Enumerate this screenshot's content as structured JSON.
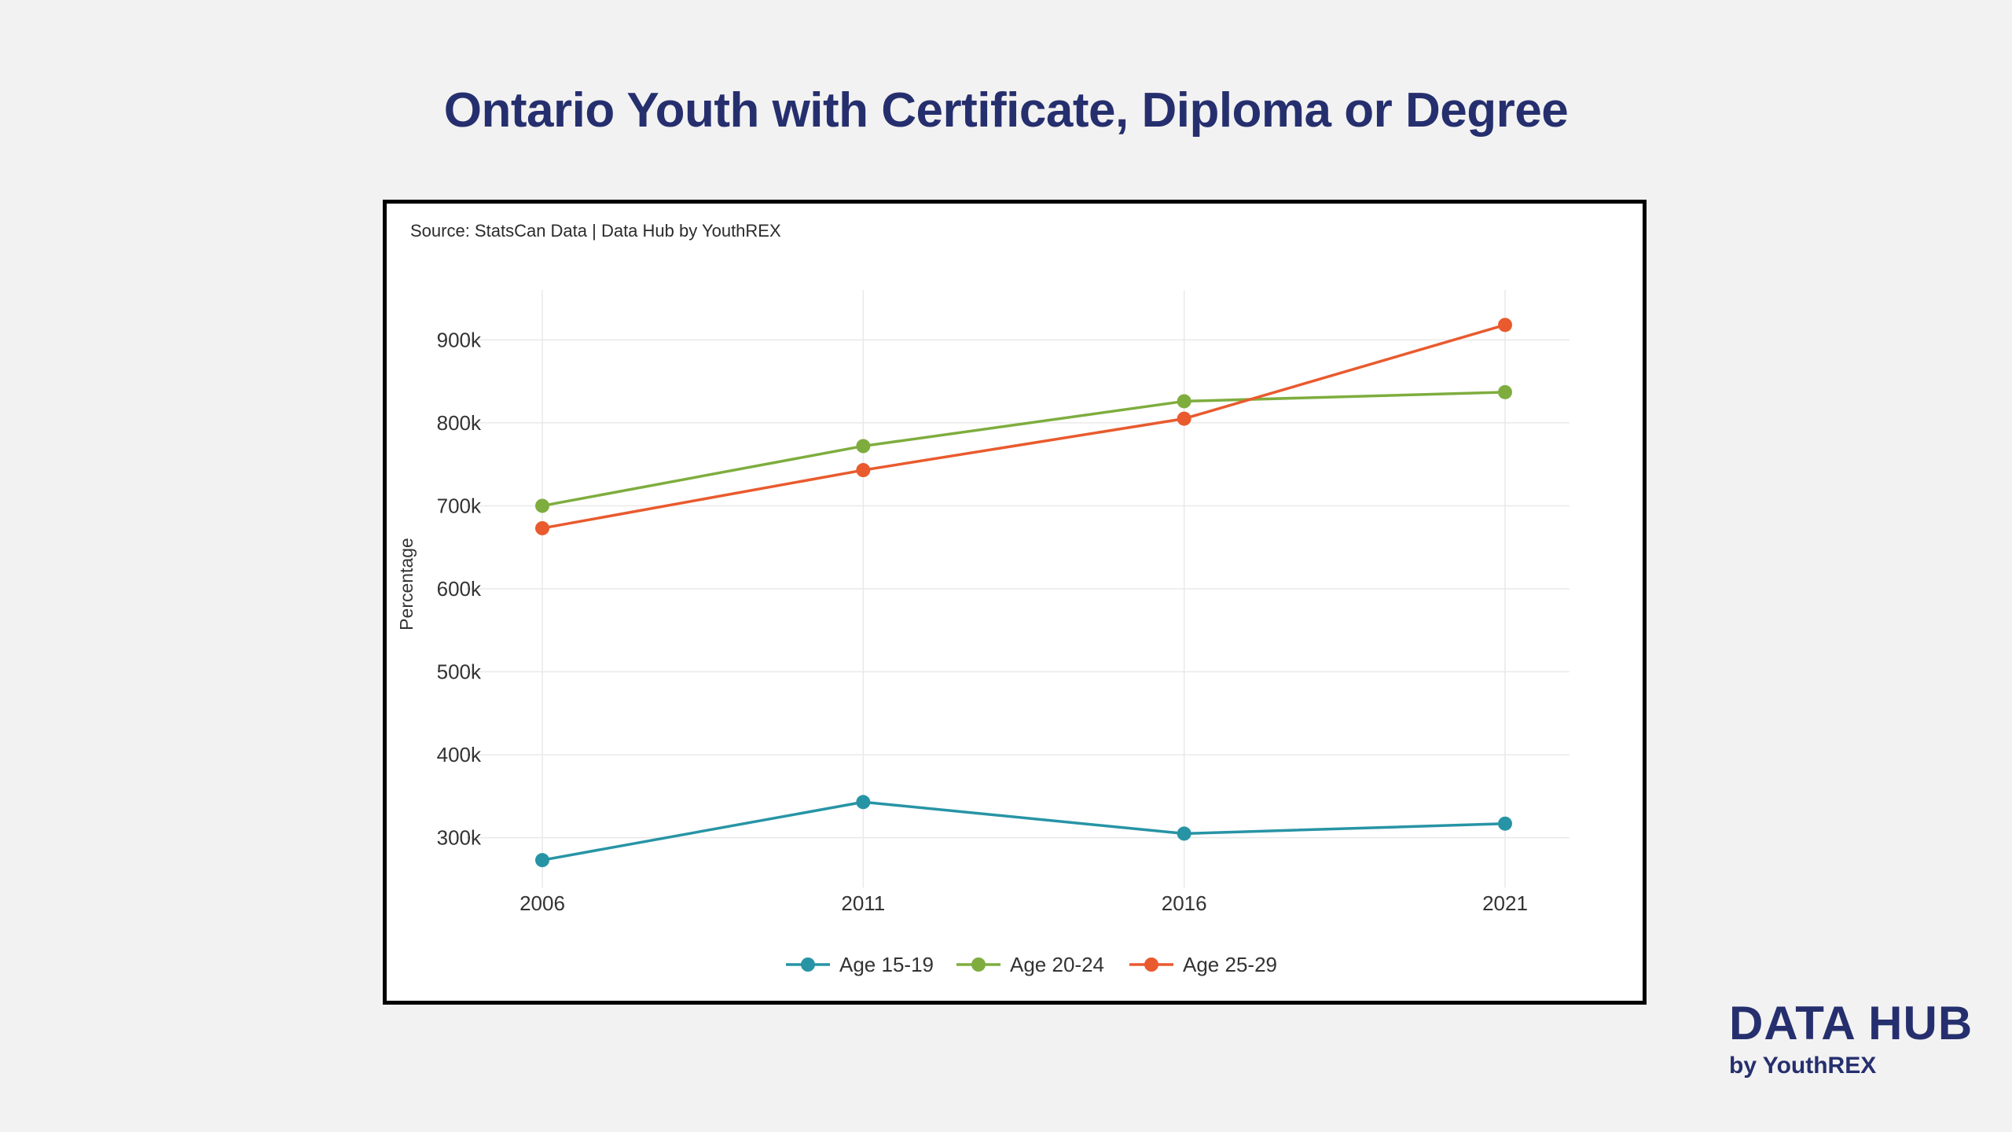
{
  "page": {
    "title": "Ontario Youth with Certificate, Diploma or Degree",
    "source": "Source: StatsCan Data | Data Hub by YouthREX",
    "brand_name": "DATA HUB",
    "brand_sub": "by YouthREX"
  },
  "chart_data": {
    "type": "line",
    "title": "",
    "xlabel": "",
    "ylabel": "Percentage",
    "x": [
      "2006",
      "2011",
      "2016",
      "2021"
    ],
    "ylim": [
      240000,
      960000
    ],
    "yticks": [
      300000,
      400000,
      500000,
      600000,
      700000,
      800000,
      900000
    ],
    "ytick_labels": [
      "300k",
      "400k",
      "500k",
      "600k",
      "700k",
      "800k",
      "900k"
    ],
    "grid": true,
    "legend_position": "bottom",
    "series": [
      {
        "name": "Age 15-19",
        "color": "#2794a5",
        "values": [
          273000,
          343000,
          305000,
          317000
        ]
      },
      {
        "name": "Age 20-24",
        "color": "#7ead3e",
        "values": [
          700000,
          772000,
          826000,
          837000
        ]
      },
      {
        "name": "Age 25-29",
        "color": "#e95a2e",
        "values": [
          673000,
          743000,
          805000,
          918000
        ]
      }
    ]
  }
}
